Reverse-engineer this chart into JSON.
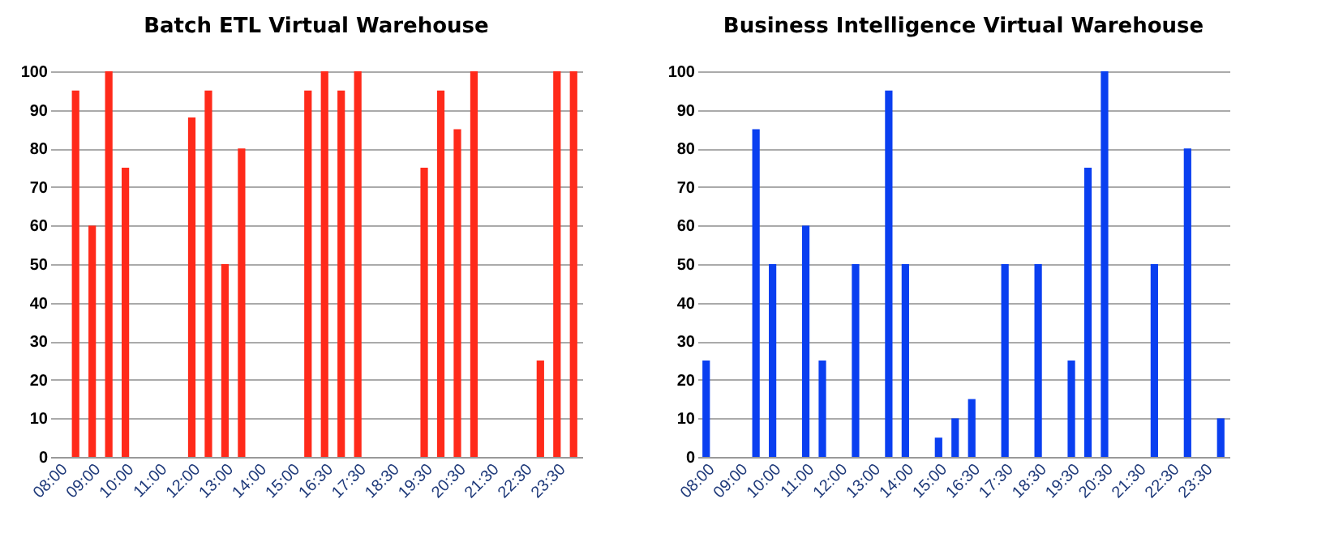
{
  "chart_data": [
    {
      "type": "bar",
      "title": "Batch ETL Virtual Warehouse",
      "categories": [
        "08:00",
        null,
        "09:00",
        null,
        "10:00",
        null,
        "11:00",
        null,
        "12:00",
        null,
        "13:00",
        null,
        "14:00",
        null,
        "15:00",
        null,
        "16:30",
        null,
        "17:30",
        null,
        "18:30",
        null,
        "19:30",
        null,
        "20:30",
        null,
        "21:30",
        null,
        "22:30",
        null,
        "23:30",
        null
      ],
      "series": [
        {
          "color": "#ff2a1a",
          "values": [
            0,
            95,
            60,
            100,
            75,
            0,
            0,
            0,
            88,
            95,
            50,
            80,
            0,
            0,
            0,
            95,
            100,
            95,
            100,
            0,
            0,
            0,
            75,
            95,
            85,
            100,
            0,
            0,
            0,
            25,
            100,
            100
          ]
        }
      ],
      "ylim": [
        0,
        100
      ],
      "yticks": [
        0,
        10,
        20,
        30,
        40,
        50,
        60,
        70,
        80,
        90,
        100
      ],
      "grid": "y",
      "legend": false
    },
    {
      "type": "bar",
      "title": "Business Intelligence Virtual Warehouse",
      "categories": [
        "08:00",
        null,
        "09:00",
        null,
        "10:00",
        null,
        "11:00",
        null,
        "12:00",
        null,
        "13:00",
        null,
        "14:00",
        null,
        "15:00",
        null,
        "16:30",
        null,
        "17:30",
        null,
        "18:30",
        null,
        "19:30",
        null,
        "20:30",
        null,
        "21:30",
        null,
        "22:30",
        null,
        "23:30",
        null
      ],
      "series": [
        {
          "color": "#0a3ff0",
          "values": [
            25,
            0,
            0,
            85,
            50,
            0,
            60,
            25,
            0,
            50,
            0,
            95,
            50,
            0,
            5,
            10,
            15,
            0,
            50,
            0,
            50,
            0,
            25,
            75,
            100,
            0,
            0,
            50,
            0,
            80,
            0,
            10
          ]
        }
      ],
      "ylim": [
        0,
        100
      ],
      "yticks": [
        0,
        10,
        20,
        30,
        40,
        50,
        60,
        70,
        80,
        90,
        100
      ],
      "grid": "y",
      "legend": false
    }
  ]
}
